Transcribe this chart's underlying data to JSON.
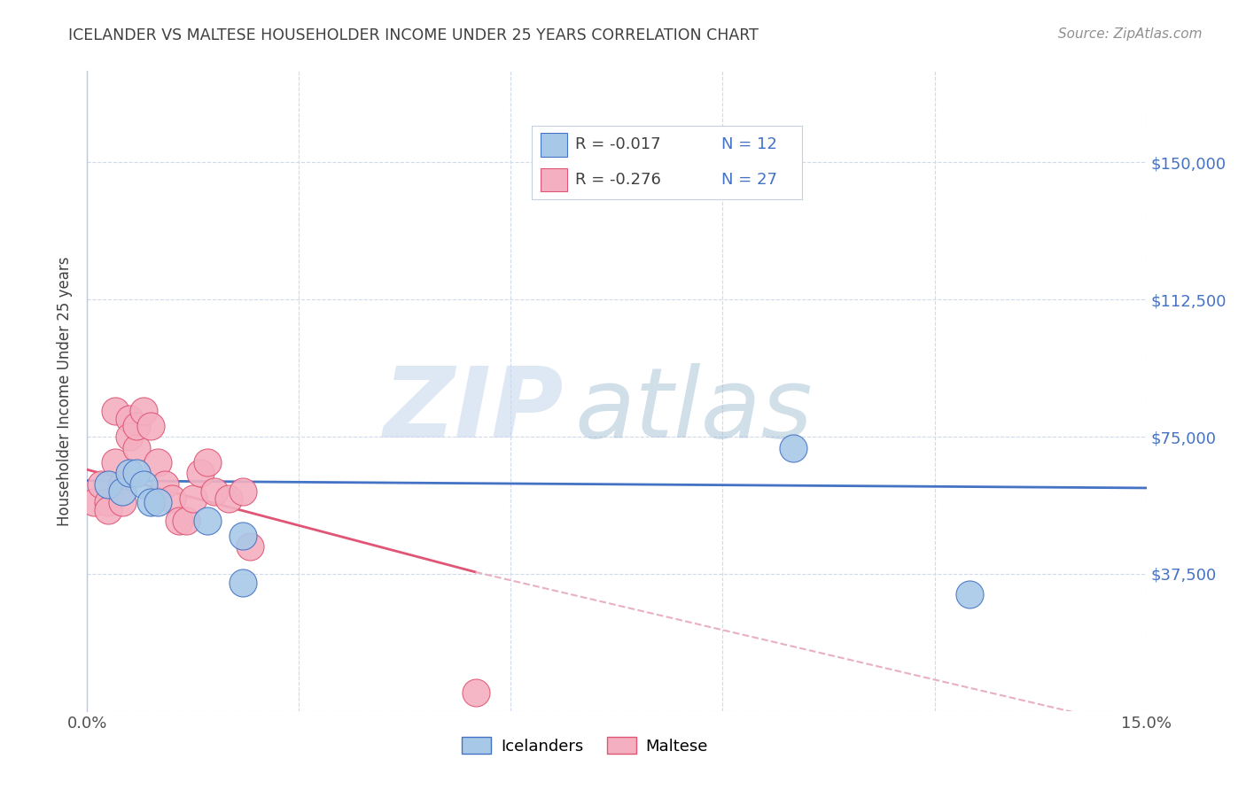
{
  "title": "ICELANDER VS MALTESE HOUSEHOLDER INCOME UNDER 25 YEARS CORRELATION CHART",
  "source": "Source: ZipAtlas.com",
  "ylabel": "Householder Income Under 25 years",
  "xlim": [
    0.0,
    0.15
  ],
  "ylim": [
    0,
    175000
  ],
  "yticks": [
    0,
    37500,
    75000,
    112500,
    150000
  ],
  "ytick_labels": [
    "",
    "$37,500",
    "$75,000",
    "$112,500",
    "$150,000"
  ],
  "xticks": [
    0.0,
    0.03,
    0.06,
    0.09,
    0.12,
    0.15
  ],
  "xtick_labels": [
    "0.0%",
    "",
    "",
    "",
    "",
    "15.0%"
  ],
  "icelander_color": "#a8c8e8",
  "maltese_color": "#f4b0c0",
  "icelander_line_color": "#4472c4",
  "maltese_line_color": "#e05575",
  "maltese_line_dashed_color": "#e8b0c0",
  "watermark_ZIP_color": "#c8d8ee",
  "watermark_atlas_color": "#9ab8d0",
  "title_color": "#404040",
  "right_axis_color": "#4472c4",
  "source_color": "#909090",
  "grid_color": "#d0daea",
  "background_color": "#ffffff",
  "icelander_x": [
    0.003,
    0.005,
    0.006,
    0.007,
    0.008,
    0.009,
    0.01,
    0.017,
    0.022,
    0.022,
    0.1,
    0.125
  ],
  "icelander_y": [
    62000,
    60000,
    65000,
    65000,
    62000,
    57000,
    57000,
    52000,
    48000,
    35000,
    72000,
    32000
  ],
  "maltese_x": [
    0.001,
    0.002,
    0.003,
    0.003,
    0.004,
    0.004,
    0.005,
    0.005,
    0.006,
    0.006,
    0.007,
    0.007,
    0.008,
    0.009,
    0.01,
    0.011,
    0.012,
    0.013,
    0.014,
    0.015,
    0.016,
    0.017,
    0.018,
    0.02,
    0.022,
    0.023,
    0.055
  ],
  "maltese_y": [
    57000,
    62000,
    57000,
    55000,
    82000,
    68000,
    62000,
    57000,
    80000,
    75000,
    72000,
    78000,
    82000,
    78000,
    68000,
    62000,
    58000,
    52000,
    52000,
    58000,
    65000,
    68000,
    60000,
    58000,
    60000,
    45000,
    5000
  ],
  "legend_R_ice": "R = -0.017",
  "legend_N_ice": "N = 12",
  "legend_R_mal": "R = -0.276",
  "legend_N_mal": "N = 27"
}
